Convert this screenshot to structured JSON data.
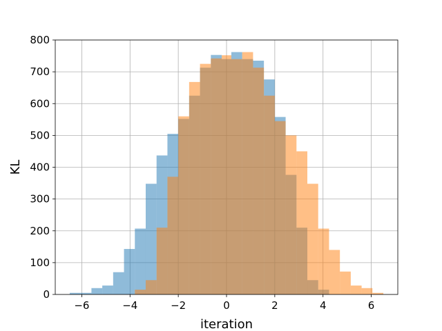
{
  "chart_data": {
    "type": "histogram",
    "xlabel": "iteration",
    "ylabel": "KL",
    "xlim": [
      -7.1,
      7.1
    ],
    "ylim": [
      0,
      800
    ],
    "xticks": [
      -6,
      -4,
      -2,
      0,
      2,
      4,
      6
    ],
    "xtick_labels": [
      "−6",
      "−4",
      "−2",
      "0",
      "2",
      "4",
      "6"
    ],
    "yticks": [
      0,
      100,
      200,
      300,
      400,
      500,
      600,
      700,
      800
    ],
    "ytick_labels": [
      "0",
      "100",
      "200",
      "300",
      "400",
      "500",
      "600",
      "700",
      "800"
    ],
    "grid": true,
    "bin_edges": [
      -6.5,
      -6.05,
      -5.6,
      -5.15,
      -4.7,
      -4.25,
      -3.8,
      -3.35,
      -2.9,
      -2.45,
      -2.0,
      -1.55,
      -1.1,
      -0.65,
      -0.2,
      0.2,
      0.65,
      1.1,
      1.55,
      2.0,
      2.45,
      2.9,
      3.35,
      3.8,
      4.25,
      4.7,
      5.15,
      5.6,
      6.05,
      6.5
    ],
    "series": [
      {
        "color": "#1f77b4",
        "alpha": 0.5,
        "bin_start": -6.5,
        "values": [
          5,
          5,
          20,
          28,
          70,
          143,
          207,
          348,
          437,
          505,
          552,
          625,
          713,
          753,
          740,
          762,
          740,
          735,
          676,
          558,
          376,
          210,
          45,
          15,
          0,
          0,
          0,
          0,
          0
        ]
      },
      {
        "color": "#ff7f0e",
        "alpha": 0.5,
        "bin_start": -6.5,
        "values": [
          0,
          0,
          0,
          0,
          0,
          0,
          15,
          45,
          210,
          370,
          560,
          668,
          725,
          742,
          752,
          740,
          762,
          713,
          625,
          545,
          500,
          450,
          348,
          207,
          140,
          72,
          28,
          20,
          5
        ]
      }
    ]
  }
}
